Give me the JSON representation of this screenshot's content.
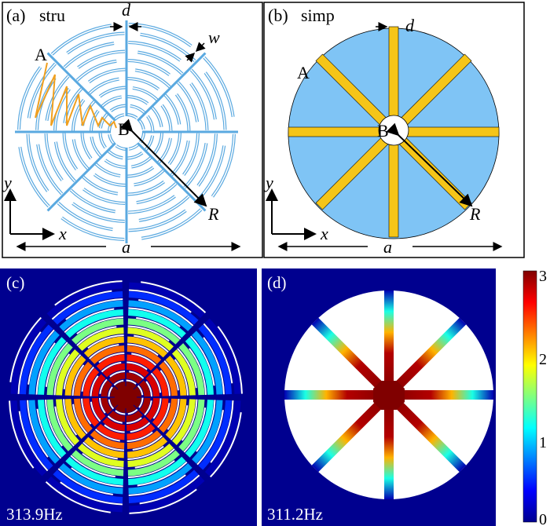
{
  "panels": {
    "a": {
      "tag": "(a)",
      "name": "stru",
      "labels": {
        "A": "A",
        "B": "B",
        "d": "d",
        "w": "w",
        "R": "R",
        "a": "a",
        "x": "x",
        "y": "y"
      }
    },
    "b": {
      "tag": "(b)",
      "name": "simp",
      "labels": {
        "A": "A",
        "B": "B",
        "d": "d",
        "R": "R",
        "a": "a",
        "x": "x",
        "y": "y"
      }
    },
    "c": {
      "tag": "(c)",
      "frequency": "313.9Hz"
    },
    "d": {
      "tag": "(d)",
      "frequency": "311.2Hz"
    }
  },
  "colorbar": {
    "ticks": [
      "3",
      "2",
      "1",
      "0"
    ],
    "range": [
      0,
      3
    ],
    "colormap": "jet"
  },
  "colors": {
    "structure": "#5aa9e0",
    "plate_fill": "#7fc4f5",
    "spoke": "#f5c518",
    "path": "#f0a020",
    "background_field": "#00008f"
  }
}
